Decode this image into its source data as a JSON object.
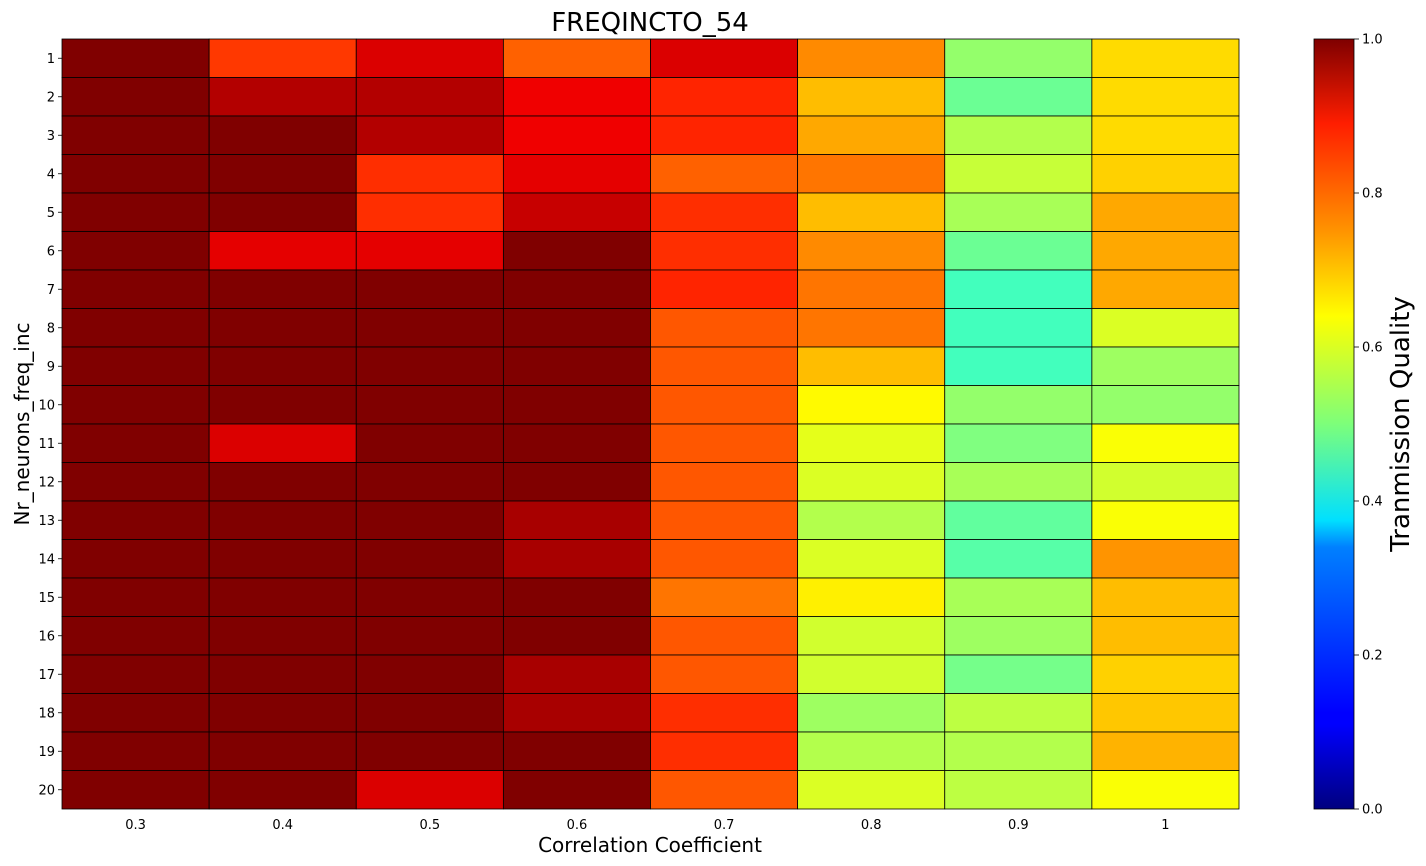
{
  "chart_data": {
    "type": "heatmap",
    "title": "FREQINCTO_54",
    "xlabel": "Correlation Coefficient",
    "ylabel": "Nr_neurons_freq_inc",
    "x_categories": [
      "0.3",
      "0.4",
      "0.5",
      "0.6",
      "0.7",
      "0.8",
      "0.9",
      "1"
    ],
    "y_categories": [
      "1",
      "2",
      "3",
      "4",
      "5",
      "6",
      "7",
      "8",
      "9",
      "10",
      "11",
      "12",
      "13",
      "14",
      "15",
      "16",
      "17",
      "18",
      "19",
      "20"
    ],
    "values": [
      [
        1.0,
        0.82,
        0.91,
        0.78,
        0.91,
        0.74,
        0.52,
        0.66
      ],
      [
        1.0,
        0.95,
        0.95,
        0.89,
        0.84,
        0.69,
        0.48,
        0.66
      ],
      [
        1.0,
        1.0,
        0.95,
        0.89,
        0.84,
        0.71,
        0.55,
        0.66
      ],
      [
        1.0,
        1.0,
        0.83,
        0.9,
        0.78,
        0.76,
        0.57,
        0.67
      ],
      [
        1.0,
        1.0,
        0.83,
        0.93,
        0.83,
        0.69,
        0.54,
        0.71
      ],
      [
        1.0,
        0.9,
        0.9,
        1.0,
        0.83,
        0.74,
        0.48,
        0.71
      ],
      [
        1.0,
        1.0,
        1.0,
        1.0,
        0.84,
        0.76,
        0.44,
        0.71
      ],
      [
        1.0,
        1.0,
        1.0,
        1.0,
        0.79,
        0.76,
        0.44,
        0.59
      ],
      [
        1.0,
        1.0,
        1.0,
        1.0,
        0.79,
        0.69,
        0.44,
        0.53
      ],
      [
        1.0,
        1.0,
        1.0,
        1.0,
        0.79,
        0.63,
        0.52,
        0.52
      ],
      [
        1.0,
        0.91,
        1.0,
        1.0,
        0.79,
        0.6,
        0.5,
        0.62
      ],
      [
        1.0,
        1.0,
        1.0,
        1.0,
        0.79,
        0.59,
        0.54,
        0.58
      ],
      [
        1.0,
        1.0,
        1.0,
        0.96,
        0.79,
        0.55,
        0.47,
        0.62
      ],
      [
        1.0,
        1.0,
        1.0,
        0.96,
        0.79,
        0.59,
        0.46,
        0.73
      ],
      [
        1.0,
        1.0,
        1.0,
        1.0,
        0.76,
        0.64,
        0.54,
        0.69
      ],
      [
        1.0,
        1.0,
        1.0,
        1.0,
        0.79,
        0.58,
        0.53,
        0.69
      ],
      [
        1.0,
        1.0,
        1.0,
        0.96,
        0.79,
        0.58,
        0.49,
        0.67
      ],
      [
        1.0,
        1.0,
        1.0,
        0.96,
        0.83,
        0.53,
        0.56,
        0.68
      ],
      [
        1.0,
        1.0,
        1.0,
        1.0,
        0.83,
        0.55,
        0.55,
        0.7
      ],
      [
        1.0,
        1.0,
        0.91,
        1.0,
        0.79,
        0.59,
        0.56,
        0.62
      ]
    ],
    "colormap": "jet",
    "colorbar": {
      "label": "Tranmission Quality",
      "range": [
        0.0,
        1.0
      ],
      "ticks": [
        "0.0",
        "0.2",
        "0.4",
        "0.6",
        "0.8",
        "1.0"
      ]
    },
    "cell_border_color": "#000000"
  }
}
